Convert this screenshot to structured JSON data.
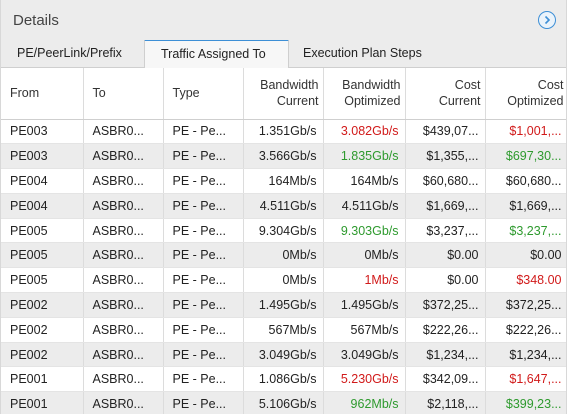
{
  "header": {
    "title": "Details",
    "info_icon": "chevron-right-circle-icon",
    "accent": "#3d8fd6"
  },
  "tabs": [
    {
      "label": "PE/PeerLink/Prefix",
      "active": false
    },
    {
      "label": "Traffic Assigned To",
      "active": true
    },
    {
      "label": "Execution Plan Steps",
      "active": false
    }
  ],
  "columns": [
    {
      "l1": "From",
      "l2": ""
    },
    {
      "l1": "To",
      "l2": ""
    },
    {
      "l1": "Type",
      "l2": ""
    },
    {
      "l1": "Bandwidth",
      "l2": "Current"
    },
    {
      "l1": "Bandwidth",
      "l2": "Optimized"
    },
    {
      "l1": "Cost",
      "l2": "Current"
    },
    {
      "l1": "Cost",
      "l2": "Optimized"
    }
  ],
  "rows": [
    {
      "from": "PE003",
      "to": "ASBR0...",
      "type": "PE - Pe...",
      "bw_cur": "1.351Gb/s",
      "bw_opt": "3.082Gb/s",
      "bw_opt_color": "red",
      "cost_cur": "$439,07...",
      "cost_opt": "$1,001,...",
      "cost_opt_color": "red"
    },
    {
      "from": "PE003",
      "to": "ASBR0...",
      "type": "PE - Pe...",
      "bw_cur": "3.566Gb/s",
      "bw_opt": "1.835Gb/s",
      "bw_opt_color": "green",
      "cost_cur": "$1,355,...",
      "cost_opt": "$697,30...",
      "cost_opt_color": "green"
    },
    {
      "from": "PE004",
      "to": "ASBR0...",
      "type": "PE - Pe...",
      "bw_cur": "164Mb/s",
      "bw_opt": "164Mb/s",
      "bw_opt_color": "",
      "cost_cur": "$60,680...",
      "cost_opt": "$60,680...",
      "cost_opt_color": ""
    },
    {
      "from": "PE004",
      "to": "ASBR0...",
      "type": "PE - Pe...",
      "bw_cur": "4.511Gb/s",
      "bw_opt": "4.511Gb/s",
      "bw_opt_color": "",
      "cost_cur": "$1,669,...",
      "cost_opt": "$1,669,...",
      "cost_opt_color": ""
    },
    {
      "from": "PE005",
      "to": "ASBR0...",
      "type": "PE - Pe...",
      "bw_cur": "9.304Gb/s",
      "bw_opt": "9.303Gb/s",
      "bw_opt_color": "green",
      "cost_cur": "$3,237,...",
      "cost_opt": "$3,237,...",
      "cost_opt_color": "green"
    },
    {
      "from": "PE005",
      "to": "ASBR0...",
      "type": "PE - Pe...",
      "bw_cur": "0Mb/s",
      "bw_opt": "0Mb/s",
      "bw_opt_color": "",
      "cost_cur": "$0.00",
      "cost_opt": "$0.00",
      "cost_opt_color": ""
    },
    {
      "from": "PE005",
      "to": "ASBR0...",
      "type": "PE - Pe...",
      "bw_cur": "0Mb/s",
      "bw_opt": "1Mb/s",
      "bw_opt_color": "red",
      "cost_cur": "$0.00",
      "cost_opt": "$348.00",
      "cost_opt_color": "red"
    },
    {
      "from": "PE002",
      "to": "ASBR0...",
      "type": "PE - Pe...",
      "bw_cur": "1.495Gb/s",
      "bw_opt": "1.495Gb/s",
      "bw_opt_color": "",
      "cost_cur": "$372,25...",
      "cost_opt": "$372,25...",
      "cost_opt_color": ""
    },
    {
      "from": "PE002",
      "to": "ASBR0...",
      "type": "PE - Pe...",
      "bw_cur": "567Mb/s",
      "bw_opt": "567Mb/s",
      "bw_opt_color": "",
      "cost_cur": "$222,26...",
      "cost_opt": "$222,26...",
      "cost_opt_color": ""
    },
    {
      "from": "PE002",
      "to": "ASBR0...",
      "type": "PE - Pe...",
      "bw_cur": "3.049Gb/s",
      "bw_opt": "3.049Gb/s",
      "bw_opt_color": "",
      "cost_cur": "$1,234,...",
      "cost_opt": "$1,234,...",
      "cost_opt_color": ""
    },
    {
      "from": "PE001",
      "to": "ASBR0...",
      "type": "PE - Pe...",
      "bw_cur": "1.086Gb/s",
      "bw_opt": "5.230Gb/s",
      "bw_opt_color": "red",
      "cost_cur": "$342,09...",
      "cost_opt": "$1,647,...",
      "cost_opt_color": "red"
    },
    {
      "from": "PE001",
      "to": "ASBR0...",
      "type": "PE - Pe...",
      "bw_cur": "5.106Gb/s",
      "bw_opt": "962Mb/s",
      "bw_opt_color": "green",
      "cost_cur": "$2,118,...",
      "cost_opt": "$399,23...",
      "cost_opt_color": "green"
    }
  ]
}
